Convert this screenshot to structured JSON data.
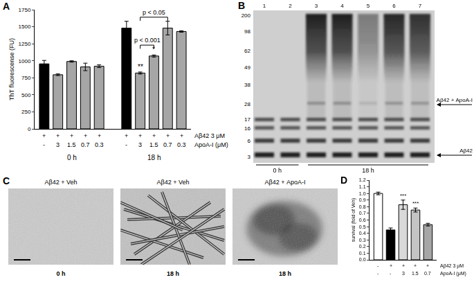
{
  "chart_data": [
    {
      "panel": "A",
      "type": "bar",
      "y_label": "ThT fluorescense (FU)",
      "groups": [
        "0 h",
        "18 h"
      ],
      "rows": [
        {
          "label": "Aβ42 3 μM",
          "values": [
            "+",
            "+",
            "+",
            "+",
            "+",
            "+",
            "+",
            "+",
            "+",
            "+"
          ]
        },
        {
          "label": "ApoA-I (μM)",
          "values": [
            "-",
            "3",
            "1.5",
            "0.7",
            "0.3",
            "-",
            "3",
            "1.5",
            "0.7",
            "0.3"
          ]
        }
      ],
      "values": [
        955,
        795,
        990,
        910,
        920,
        1480,
        820,
        1070,
        1480,
        1430
      ],
      "errors": [
        50,
        12,
        10,
        55,
        20,
        100,
        15,
        15,
        100,
        10
      ],
      "colors": [
        "#000000",
        "#a6a6a6",
        "#a6a6a6",
        "#a6a6a6",
        "#a6a6a6",
        "#000000",
        "#a6a6a6",
        "#a6a6a6",
        "#a6a6a6",
        "#a6a6a6"
      ],
      "ylim": [
        0,
        1750
      ],
      "yticks": [
        0,
        250,
        500,
        750,
        1000,
        1250,
        1500,
        1750
      ],
      "annotations": [
        {
          "index": 6,
          "text": "**"
        },
        {
          "index": 7,
          "text": "*"
        }
      ],
      "brackets": [
        {
          "from": 6,
          "to": 7,
          "y": 1230,
          "text": "p < 0.001"
        },
        {
          "from": 6,
          "to": 8,
          "y": 1640,
          "text": "p < 0.05"
        }
      ]
    },
    {
      "panel": "D",
      "type": "bar",
      "y_label": "survival (fold of Veh)",
      "rows": [
        {
          "label": "Aβ42 3 μM",
          "values": [
            "-",
            "+",
            "+",
            "+",
            "+"
          ]
        },
        {
          "label": "ApoA-I (μM)",
          "values": [
            "-",
            "-",
            "3",
            "1.5",
            "0.7"
          ]
        }
      ],
      "values": [
        1.0,
        0.45,
        0.83,
        0.75,
        0.53
      ],
      "errors": [
        0.02,
        0.03,
        0.07,
        0.03,
        0.02
      ],
      "colors": [
        "#ffffff",
        "#000000",
        "#d9d9d9",
        "#c4c4c4",
        "#a6a6a6"
      ],
      "ylim": [
        0,
        1.2
      ],
      "yticks": [
        {
          "value": 0,
          "label": "0.0"
        },
        0.1,
        0.2,
        0.3,
        0.4,
        0.5,
        0.6,
        0.7,
        0.8,
        0.9,
        {
          "value": 1,
          "label": "1.0"
        },
        1.1,
        1.2
      ],
      "annotations": [
        {
          "index": 2,
          "text": "***"
        },
        {
          "index": 3,
          "text": "***"
        }
      ]
    }
  ],
  "blot": {
    "panel": "B",
    "lanes": [
      1,
      2,
      3,
      4,
      5,
      6,
      7
    ],
    "markers": [
      200,
      98,
      62,
      49,
      38,
      28,
      17,
      16,
      6,
      3
    ],
    "arrows": [
      "Aβ42 + ApoA-I",
      "Aβ42"
    ],
    "times": [
      {
        "text": "0 h",
        "lanes": [
          1,
          2
        ]
      },
      {
        "text": "18 h",
        "lanes": [
          3,
          7
        ]
      }
    ]
  },
  "micrographs": {
    "panel": "C",
    "images": [
      {
        "title": "Aβ42 + Veh",
        "time": "0 h"
      },
      {
        "title": "Aβ42 + Veh",
        "time": "18 h"
      },
      {
        "title": "Aβ42 + ApoA-I",
        "time": "18 h"
      }
    ]
  }
}
